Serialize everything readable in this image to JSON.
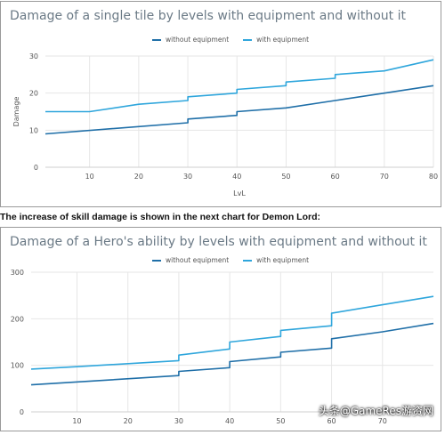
{
  "caption": "The increase of skill damage is shown in the next chart for Demon Lord:",
  "watermark": "头条@GameRes游资网",
  "colors": {
    "without": "#1f6fa8",
    "with": "#2fa6dc",
    "grid": "#e6e6e6",
    "axis_text": "#555555"
  },
  "chart_data": [
    {
      "type": "line",
      "title": "Damage of a single tile by levels with equipment and without it",
      "xlabel": "LvL",
      "ylabel": "Damage",
      "xlim": [
        1,
        80
      ],
      "ylim": [
        0,
        30
      ],
      "xticks": [
        10,
        20,
        30,
        40,
        50,
        60,
        70,
        80
      ],
      "yticks": [
        0,
        10,
        20,
        30
      ],
      "legend": "top-center",
      "grid": true,
      "series": [
        {
          "name": "without equipment",
          "color": "#1f6fa8",
          "x": [
            1,
            30,
            30,
            40,
            40,
            50,
            60,
            70,
            80
          ],
          "y": [
            9,
            12,
            13,
            14,
            15,
            16,
            18,
            20,
            22
          ]
        },
        {
          "name": "with equipment",
          "color": "#2fa6dc",
          "x": [
            1,
            10,
            20,
            30,
            30,
            40,
            40,
            50,
            50,
            60,
            60,
            70,
            80
          ],
          "y": [
            15,
            15,
            17,
            18,
            19,
            20,
            21,
            22,
            23,
            24,
            25,
            26,
            29
          ]
        }
      ]
    },
    {
      "type": "line",
      "title": "Damage of a Hero's ability by levels with equipment and without it",
      "xlabel": "",
      "ylabel": "",
      "xlim": [
        1,
        80
      ],
      "ylim": [
        0,
        300
      ],
      "xticks": [
        10,
        20,
        30,
        40,
        50,
        60,
        70
      ],
      "yticks": [
        0,
        100,
        200,
        300
      ],
      "legend": "top-center",
      "grid": true,
      "series": [
        {
          "name": "without equipment",
          "color": "#1f6fa8",
          "x": [
            1,
            30,
            30,
            40,
            40,
            50,
            50,
            60,
            60,
            70,
            80
          ],
          "y": [
            58,
            78,
            87,
            95,
            108,
            118,
            128,
            137,
            157,
            172,
            190
          ]
        },
        {
          "name": "with equipment",
          "color": "#2fa6dc",
          "x": [
            1,
            10,
            30,
            30,
            40,
            40,
            50,
            50,
            60,
            60,
            70,
            80
          ],
          "y": [
            92,
            97,
            110,
            122,
            135,
            150,
            162,
            175,
            185,
            212,
            230,
            248
          ]
        }
      ]
    }
  ]
}
